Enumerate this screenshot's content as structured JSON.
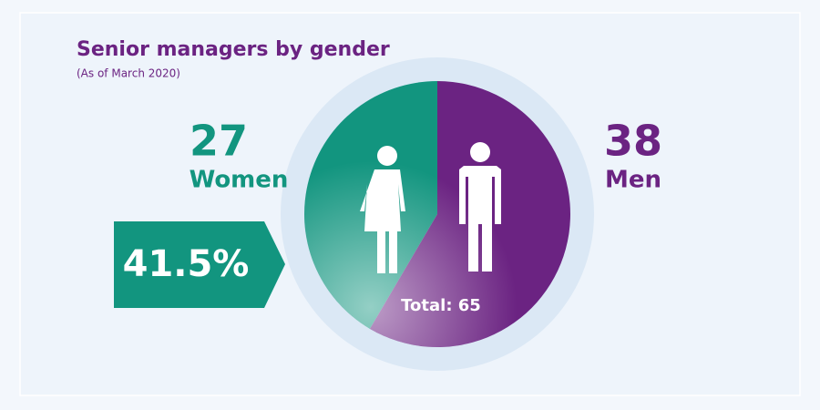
{
  "chart_data": {
    "type": "pie",
    "title": "Senior managers by gender",
    "subtitle": "(As of March 2020)",
    "categories": [
      "Women",
      "Men"
    ],
    "values": [
      27,
      38
    ],
    "colors": [
      "#12957f",
      "#6b2382"
    ],
    "highlight": "41.5%",
    "total_label": "Total: 65"
  }
}
